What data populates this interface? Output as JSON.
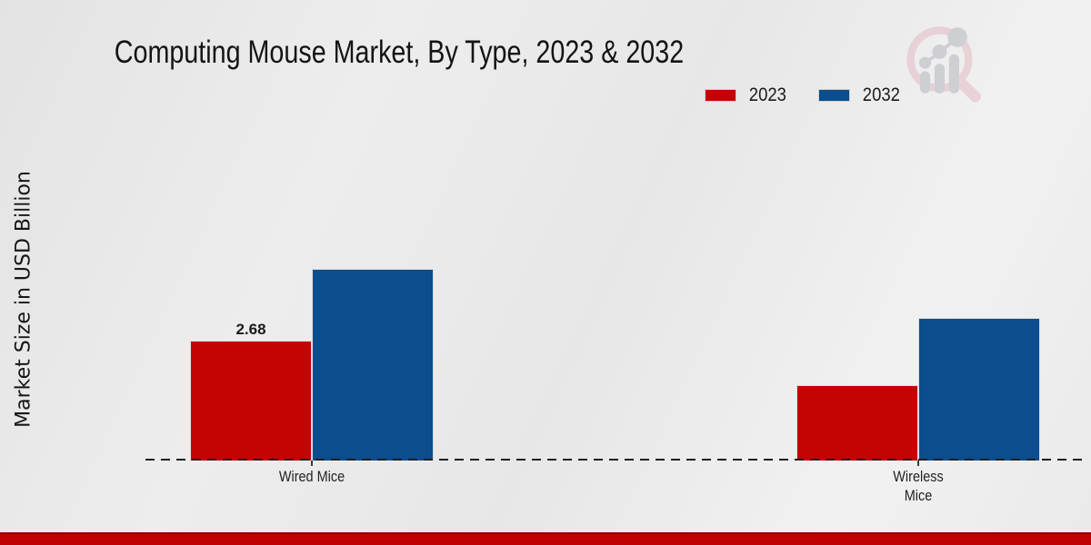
{
  "header": {
    "title": "Computing Mouse Market, By Type, 2023 & 2032"
  },
  "y_axis": {
    "label": "Market Size in USD Billion"
  },
  "legend": {
    "items": [
      {
        "label": "2023",
        "color": "#c40303"
      },
      {
        "label": "2032",
        "color": "#0b4d8d"
      }
    ]
  },
  "chart_data": {
    "type": "bar",
    "title": "Computing Mouse Market, By Type, 2023 & 2032",
    "xlabel": "",
    "ylabel": "Market Size in USD Billion",
    "categories": [
      "Wired Mice",
      "Wireless Mice"
    ],
    "category_display_lines": [
      [
        "Wired Mice"
      ],
      [
        "Wireless",
        "Mice"
      ]
    ],
    "series": [
      {
        "name": "2023",
        "color": "#c40303",
        "values": [
          2.68,
          1.68
        ],
        "data_labels": [
          "2.68",
          ""
        ]
      },
      {
        "name": "2032",
        "color": "#0b4d8d",
        "values": [
          4.27,
          3.17
        ],
        "data_labels": [
          "",
          ""
        ]
      }
    ],
    "ylim": [
      0,
      5
    ],
    "grid": false,
    "y_tick_labels_visible": false,
    "legend_position": "top-right",
    "baseline_style": "dashed-black-over-bars"
  },
  "branding": {
    "logo_name": "magnifier-bar-chart-logo",
    "ring_color": "#e8cdd2",
    "bars_color": "#c8cacf"
  },
  "footer": {
    "bar_color": "#c00101",
    "bar_edge_color": "#8d0404"
  }
}
